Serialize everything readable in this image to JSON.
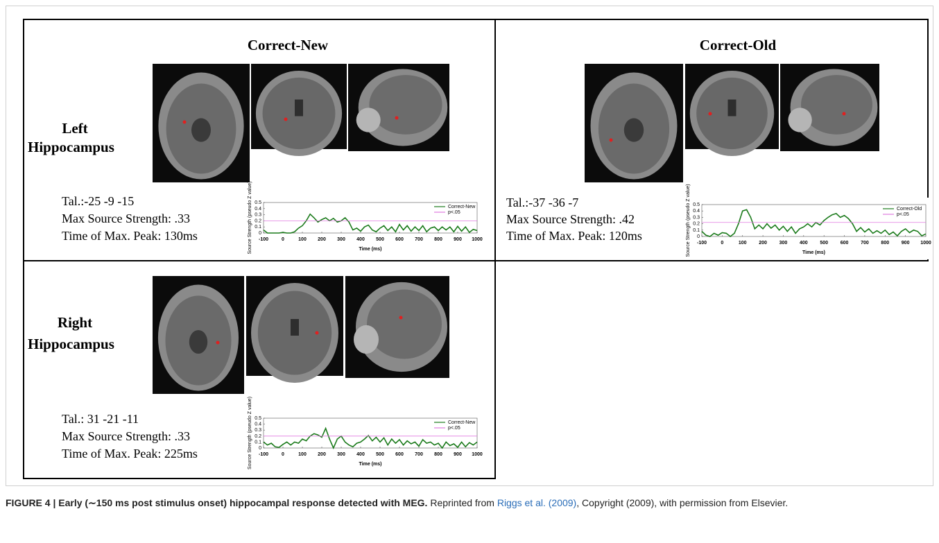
{
  "panels": [
    {
      "condition": "Correct-New",
      "region": [
        "Left",
        "Hippocampus"
      ],
      "stats": [
        "Tal.:-25 -9 -15",
        "Max Source Strength: .33",
        "Time of Max. Peak: 130ms"
      ]
    },
    {
      "condition": "Correct-Old",
      "stats": [
        "Tal.:-37 -36 -7",
        "Max Source Strength: .42",
        "Time of Max. Peak: 120ms"
      ]
    },
    {
      "region": [
        "Right",
        "Hippocampus"
      ],
      "stats": [
        "Tal.: 31 -21 -11",
        "Max Source Strength: .33",
        "Time of Max. Peak: 225ms"
      ]
    }
  ],
  "chart_data": [
    {
      "type": "line",
      "xlabel": "Time (ms)",
      "ylabel": "Source Strength (pseudo Z value)",
      "x": [
        -100,
        -80,
        -60,
        -40,
        -20,
        0,
        20,
        40,
        60,
        80,
        100,
        120,
        140,
        160,
        180,
        200,
        220,
        240,
        260,
        280,
        300,
        320,
        340,
        360,
        380,
        400,
        420,
        440,
        460,
        480,
        500,
        520,
        540,
        560,
        580,
        600,
        620,
        640,
        660,
        680,
        700,
        720,
        740,
        760,
        780,
        800,
        820,
        840,
        860,
        880,
        900,
        920,
        940,
        960,
        980,
        1000
      ],
      "series": [
        {
          "name": "Correct-New",
          "color": "#1a7a1a",
          "values": [
            0.05,
            0,
            0,
            0,
            0,
            0.01,
            0,
            0,
            0.02,
            0.08,
            0.12,
            0.2,
            0.31,
            0.25,
            0.18,
            0.22,
            0.25,
            0.2,
            0.24,
            0.18,
            0.2,
            0.25,
            0.18,
            0.05,
            0.08,
            0.03,
            0.1,
            0.13,
            0.05,
            0.02,
            0.08,
            0.12,
            0.04,
            0.1,
            0.02,
            0.14,
            0.05,
            0.12,
            0.03,
            0.1,
            0.04,
            0.12,
            0.02,
            0.08,
            0.1,
            0.04,
            0.1,
            0.05,
            0.1,
            0.02,
            0.11,
            0.03,
            0.1,
            0.01,
            0.06,
            0.04
          ]
        },
        {
          "name": "p<.05",
          "color": "#e07be0",
          "x": [
            -100,
            1000
          ],
          "values": [
            0.2,
            0.2
          ]
        }
      ],
      "xlim": [
        -100,
        1000
      ],
      "ylim": [
        0,
        0.5
      ],
      "xticks": [
        -100,
        0,
        100,
        200,
        300,
        400,
        500,
        600,
        700,
        800,
        900,
        1000
      ],
      "yticks": [
        0,
        0.1,
        0.2,
        0.3,
        0.4,
        0.5
      ]
    },
    {
      "type": "line",
      "xlabel": "Time (ms)",
      "ylabel": "Source Strength (pseudo Z value)",
      "x": [
        -100,
        -80,
        -60,
        -40,
        -20,
        0,
        20,
        40,
        60,
        80,
        100,
        120,
        140,
        160,
        180,
        200,
        220,
        240,
        260,
        280,
        300,
        320,
        340,
        360,
        380,
        400,
        420,
        440,
        460,
        480,
        500,
        520,
        540,
        560,
        580,
        600,
        620,
        640,
        660,
        680,
        700,
        720,
        740,
        760,
        780,
        800,
        820,
        840,
        860,
        880,
        900,
        920,
        940,
        960,
        980,
        1000
      ],
      "series": [
        {
          "name": "Correct-Old",
          "color": "#1a7a1a",
          "values": [
            0.08,
            0.02,
            0,
            0.05,
            0.02,
            0.06,
            0.05,
            0,
            0.05,
            0.2,
            0.4,
            0.42,
            0.3,
            0.12,
            0.18,
            0.12,
            0.2,
            0.13,
            0.18,
            0.1,
            0.16,
            0.08,
            0.15,
            0.05,
            0.12,
            0.15,
            0.2,
            0.15,
            0.22,
            0.18,
            0.25,
            0.3,
            0.34,
            0.36,
            0.3,
            0.33,
            0.28,
            0.2,
            0.08,
            0.14,
            0.07,
            0.12,
            0.05,
            0.09,
            0.05,
            0.1,
            0.03,
            0.07,
            0.01,
            0.08,
            0.12,
            0.06,
            0.1,
            0.08,
            0.01,
            0.04
          ]
        },
        {
          "name": "p<.05",
          "color": "#e07be0",
          "x": [
            -100,
            1000
          ],
          "values": [
            0.22,
            0.22
          ]
        }
      ],
      "xlim": [
        -100,
        1000
      ],
      "ylim": [
        0,
        0.5
      ],
      "xticks": [
        -100,
        0,
        100,
        200,
        300,
        400,
        500,
        600,
        700,
        800,
        900,
        1000
      ],
      "yticks": [
        0,
        0.1,
        0.2,
        0.3,
        0.4,
        0.5
      ]
    },
    {
      "type": "line",
      "xlabel": "Time (ms)",
      "ylabel": "Source Strength (pseudo Z value)",
      "x": [
        -100,
        -80,
        -60,
        -40,
        -20,
        0,
        20,
        40,
        60,
        80,
        100,
        120,
        140,
        160,
        180,
        200,
        220,
        240,
        260,
        280,
        300,
        320,
        340,
        360,
        380,
        400,
        420,
        440,
        460,
        480,
        500,
        520,
        540,
        560,
        580,
        600,
        620,
        640,
        660,
        680,
        700,
        720,
        740,
        760,
        780,
        800,
        820,
        840,
        860,
        880,
        900,
        920,
        940,
        960,
        980,
        1000
      ],
      "series": [
        {
          "name": "Correct-New",
          "color": "#1a7a1a",
          "values": [
            0.1,
            0.05,
            0.08,
            0.02,
            0.01,
            0.06,
            0.1,
            0.05,
            0.1,
            0.08,
            0.15,
            0.12,
            0.2,
            0.24,
            0.22,
            0.18,
            0.33,
            0.15,
            0,
            0.15,
            0.2,
            0.1,
            0.05,
            0.02,
            0.08,
            0.1,
            0.15,
            0.21,
            0.12,
            0.18,
            0.1,
            0.17,
            0.05,
            0.15,
            0.08,
            0.14,
            0.05,
            0.12,
            0.07,
            0.1,
            0.03,
            0.14,
            0.08,
            0.1,
            0.05,
            0.08,
            0,
            0.1,
            0.04,
            0.07,
            0.01,
            0.1,
            0.02,
            0.09,
            0.05,
            0.1
          ]
        },
        {
          "name": "p<.05",
          "color": "#e07be0",
          "x": [
            -100,
            1000
          ],
          "values": [
            0.2,
            0.2
          ]
        }
      ],
      "xlim": [
        -100,
        1000
      ],
      "ylim": [
        0,
        0.5
      ],
      "xticks": [
        -100,
        0,
        100,
        200,
        300,
        400,
        500,
        600,
        700,
        800,
        900,
        1000
      ],
      "yticks": [
        0,
        0.1,
        0.2,
        0.3,
        0.4,
        0.5
      ]
    }
  ],
  "caption": {
    "label": "FIGURE 4 |",
    "title": "Early (∼150 ms post stimulus onset) hippocampal response detected with MEG.",
    "text_before": "Reprinted from",
    "link": "Riggs et al. (2009)",
    "text_after": ", Copyright (2009), with permission from Elsevier."
  }
}
